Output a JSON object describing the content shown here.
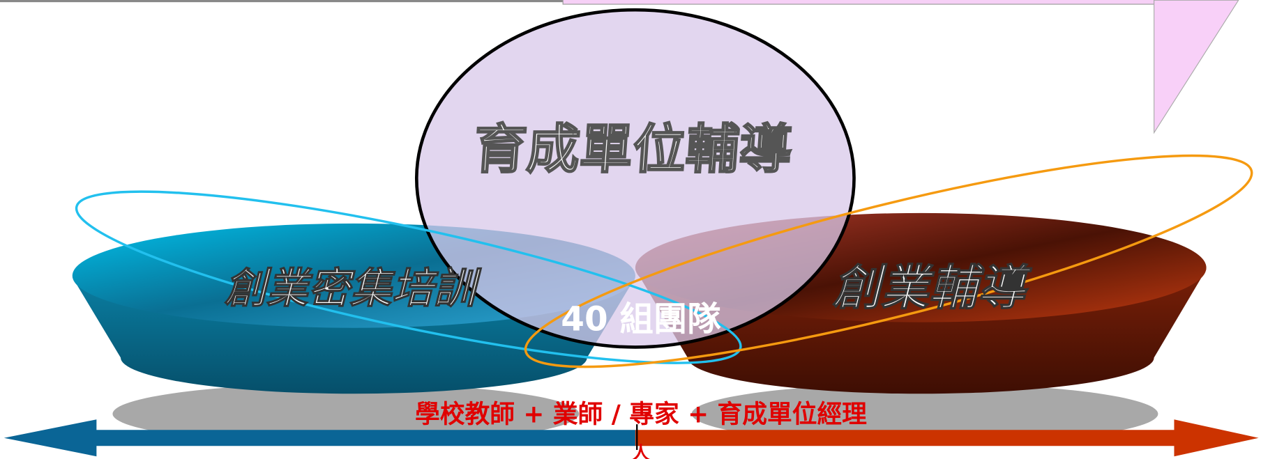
{
  "diagram": {
    "center_label": "育成單位輔導",
    "left_label": "創業密集培訓",
    "right_label": "創業輔導",
    "overlap_label": "40 組團隊",
    "bottom_label": "學校教師 + 業師 / 專家 + 育成單位經理",
    "bottom_mark": "人"
  }
}
